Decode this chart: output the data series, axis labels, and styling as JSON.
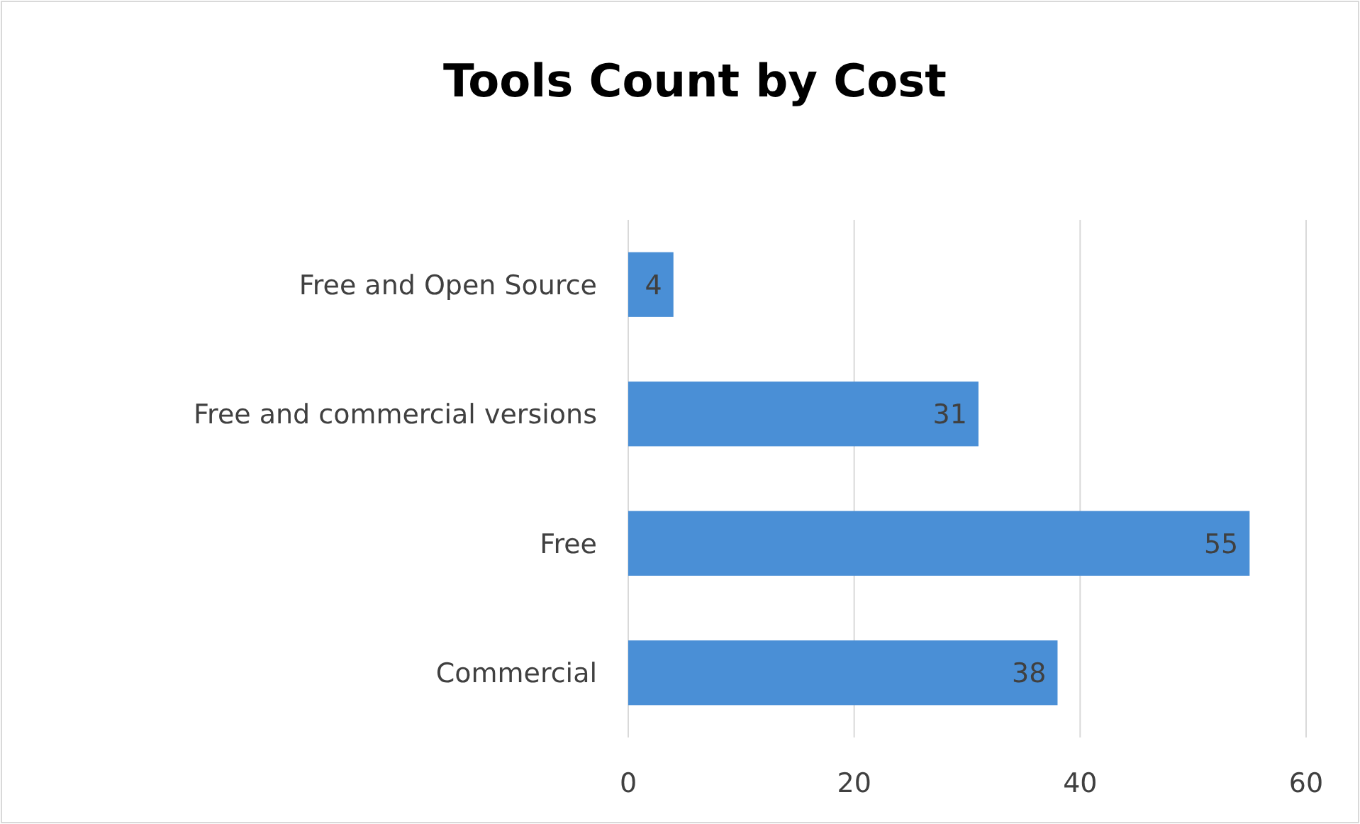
{
  "chart_data": {
    "type": "bar",
    "title": "Tools Count by Cost",
    "orientation": "horizontal",
    "categories": [
      "Free and Open Source",
      "Free and commercial versions",
      "Free",
      "Commercial"
    ],
    "values": [
      4,
      31,
      55,
      38
    ],
    "color": "#4a8fd6",
    "xlim": [
      0,
      60
    ],
    "xticks": [
      0,
      20,
      40,
      60
    ],
    "grid": "x",
    "data_labels": true
  }
}
